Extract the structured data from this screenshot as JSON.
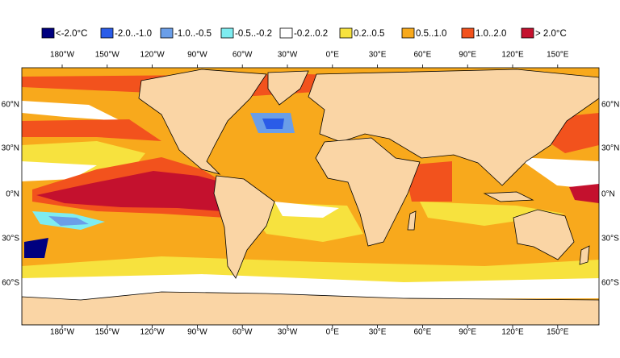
{
  "legend": {
    "items": [
      {
        "label": "<-2.0°C",
        "color": "#00007f"
      },
      {
        "label": "-2.0..-1.0",
        "color": "#2a5ce8"
      },
      {
        "label": "-1.0..-0.5",
        "color": "#6a9ee8"
      },
      {
        "label": "-0.5..-0.2",
        "color": "#7eecf0"
      },
      {
        "label": "-0.2..0.2",
        "color": "#ffffff"
      },
      {
        "label": "0.2..0.5",
        "color": "#f7e23e"
      },
      {
        "label": "0.5..1.0",
        "color": "#f8a91c"
      },
      {
        "label": "1.0..2.0",
        "color": "#f2521d"
      },
      {
        "label": "> 2.0°C",
        "color": "#c4112e"
      }
    ]
  },
  "lon_labels": [
    "180°W",
    "150°W",
    "120°W",
    "90°W",
    "60°W",
    "30°W",
    "0°E",
    "30°E",
    "60°E",
    "90°E",
    "120°E",
    "150°E"
  ],
  "lat_labels": [
    "60°N",
    "30°N",
    "0°N",
    "30°S",
    "60°S"
  ]
}
